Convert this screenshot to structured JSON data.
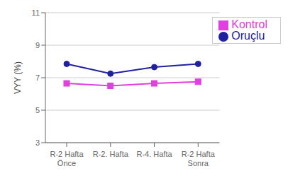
{
  "chart_data": {
    "type": "line",
    "categories": [
      "R-2 Hafta\nÖnce",
      "R-2. Hafta",
      "R-4. Hafta",
      "R-2 Hafta\nSonra"
    ],
    "series": [
      {
        "name": "Oruçlu",
        "color": "#2020a0",
        "marker": "circle",
        "values": [
          7.85,
          7.25,
          7.65,
          7.85
        ]
      },
      {
        "name": "Kontrol",
        "color": "#e040e0",
        "marker": "square",
        "values": [
          6.65,
          6.5,
          6.65,
          6.75
        ]
      }
    ],
    "ylabel": "VYY (%)",
    "ylim": [
      3,
      11
    ],
    "yticks": [
      3,
      5,
      7,
      9,
      11
    ],
    "grid": true,
    "legend": "upper right"
  }
}
